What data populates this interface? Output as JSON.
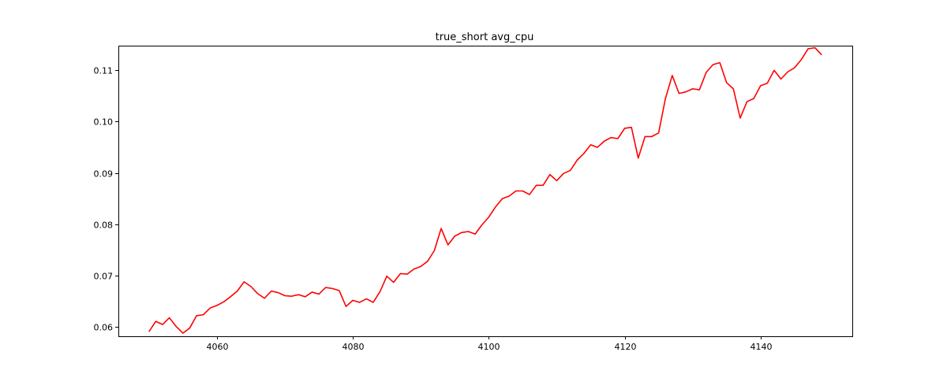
{
  "chart_data": {
    "type": "line",
    "title": "true_short avg_cpu",
    "xlabel": "",
    "ylabel": "",
    "xlim": [
      4045.5,
      4153.5
    ],
    "ylim": [
      0.0582,
      0.1148
    ],
    "xticks": [
      4060,
      4080,
      4100,
      4120,
      4140
    ],
    "yticks": [
      0.06,
      0.07,
      0.08,
      0.09,
      0.1,
      0.11
    ],
    "ytick_labels": [
      "0.06",
      "0.07",
      "0.08",
      "0.09",
      "0.10",
      "0.11"
    ],
    "grid": false,
    "series": [
      {
        "color": "#ff0000",
        "x_start": 4050,
        "x_step": 1,
        "values": [
          0.0591,
          0.0611,
          0.0605,
          0.0618,
          0.0601,
          0.0588,
          0.0598,
          0.0622,
          0.0624,
          0.0637,
          0.0642,
          0.0649,
          0.0659,
          0.067,
          0.0688,
          0.0679,
          0.0665,
          0.0656,
          0.067,
          0.0667,
          0.0661,
          0.066,
          0.0663,
          0.0659,
          0.0668,
          0.0664,
          0.0677,
          0.0675,
          0.0671,
          0.064,
          0.0652,
          0.0648,
          0.0655,
          0.0648,
          0.0669,
          0.0699,
          0.0687,
          0.0704,
          0.0703,
          0.0713,
          0.0718,
          0.0728,
          0.0749,
          0.0792,
          0.076,
          0.0777,
          0.0784,
          0.0786,
          0.0781,
          0.0799,
          0.0814,
          0.0834,
          0.085,
          0.0855,
          0.0865,
          0.0865,
          0.0858,
          0.0876,
          0.0876,
          0.0897,
          0.0885,
          0.0899,
          0.0905,
          0.0925,
          0.0938,
          0.0955,
          0.095,
          0.0962,
          0.0969,
          0.0967,
          0.0987,
          0.0989,
          0.0929,
          0.0971,
          0.0971,
          0.0978,
          0.1045,
          0.109,
          0.1055,
          0.1058,
          0.1064,
          0.1062,
          0.1096,
          0.1111,
          0.1115,
          0.1076,
          0.1064,
          0.1007,
          0.1039,
          0.1045,
          0.107,
          0.1075,
          0.11,
          0.1083,
          0.1097,
          0.1105,
          0.1121,
          0.1142,
          0.1144,
          0.113
        ]
      }
    ]
  }
}
